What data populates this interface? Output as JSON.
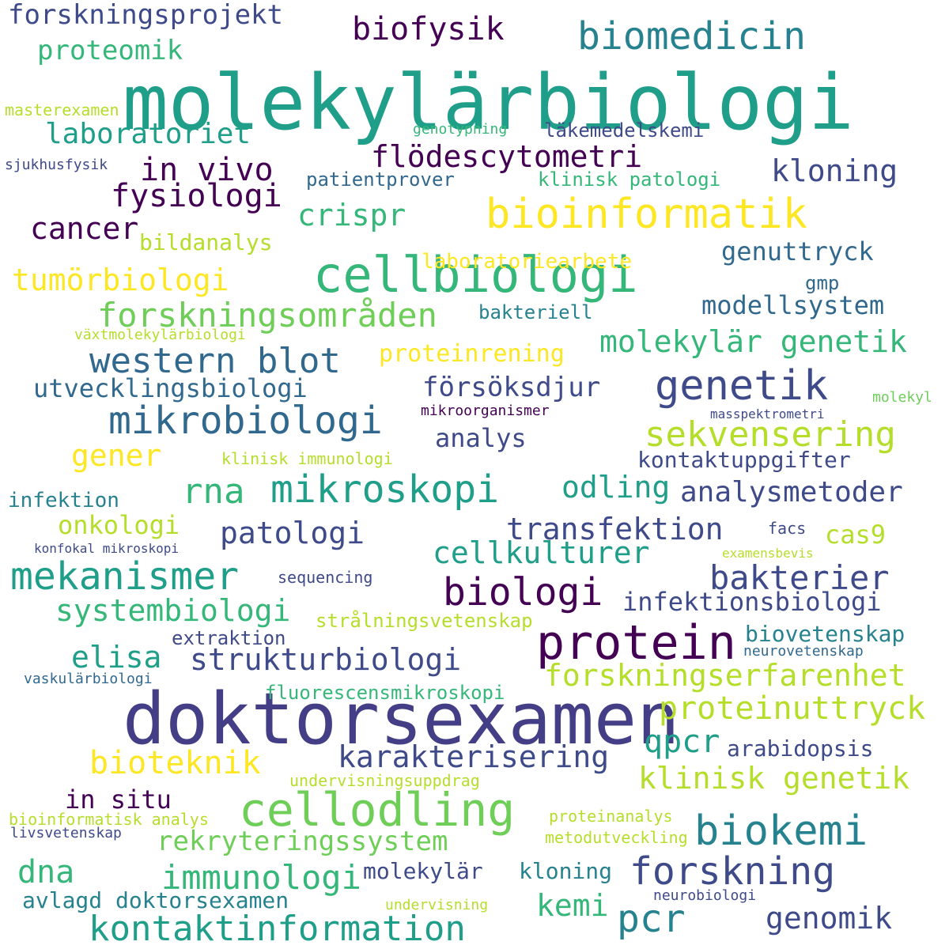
{
  "words": [
    {
      "text": "molekylärbiologi",
      "color": "#1f9e89"
    },
    {
      "text": "doktorsexamen",
      "color": "#433e85"
    },
    {
      "text": "cellbiologi",
      "color": "#35b779"
    },
    {
      "text": "protein",
      "color": "#440154"
    },
    {
      "text": "cellodling",
      "color": "#6ece58"
    },
    {
      "text": "biokemi",
      "color": "#26828e"
    },
    {
      "text": "bioinformatik",
      "color": "#fde725"
    },
    {
      "text": "genetik",
      "color": "#3e4a89"
    },
    {
      "text": "mikrobiologi",
      "color": "#31688e"
    },
    {
      "text": "biomedicin",
      "color": "#26828e"
    },
    {
      "text": "sekvensering",
      "color": "#b5de2b"
    },
    {
      "text": "western blot",
      "color": "#31688e"
    },
    {
      "text": "mikroskopi",
      "color": "#1f9e89"
    },
    {
      "text": "kontaktinformation",
      "color": "#1f9e89"
    },
    {
      "text": "forskning",
      "color": "#3e4a89"
    },
    {
      "text": "mekanismer",
      "color": "#1f9e89"
    },
    {
      "text": "biologi",
      "color": "#440154"
    },
    {
      "text": "pcr",
      "color": "#26828e"
    },
    {
      "text": "forskningsområden",
      "color": "#6ece58"
    },
    {
      "text": "molekylär genetik",
      "color": "#35b779"
    },
    {
      "text": "forskningserfarenhet",
      "color": "#b5de2b"
    },
    {
      "text": "klinisk genetik",
      "color": "#b5de2b"
    },
    {
      "text": "proteinuttryck",
      "color": "#b5de2b"
    },
    {
      "text": "immunologi",
      "color": "#35b779"
    },
    {
      "text": "bioteknik",
      "color": "#fde725"
    },
    {
      "text": "karakterisering",
      "color": "#3e4a89"
    },
    {
      "text": "qpcr",
      "color": "#1f9e89"
    },
    {
      "text": "bakterier",
      "color": "#3e4a89"
    },
    {
      "text": "transfektion",
      "color": "#3e4a89"
    },
    {
      "text": "cellkulturer",
      "color": "#1f9e89"
    },
    {
      "text": "systembiologi",
      "color": "#35b779"
    },
    {
      "text": "strukturbiologi",
      "color": "#3e4a89"
    },
    {
      "text": "rekryteringssystem",
      "color": "#6ece58"
    },
    {
      "text": "genomik",
      "color": "#3e4a89"
    },
    {
      "text": "flödescytometri",
      "color": "#440154"
    },
    {
      "text": "in vivo",
      "color": "#440154"
    },
    {
      "text": "fysiologi",
      "color": "#440154"
    },
    {
      "text": "kloning",
      "color": "#3e4a89"
    },
    {
      "text": "crispr",
      "color": "#35b779"
    },
    {
      "text": "cancer",
      "color": "#440154"
    },
    {
      "text": "tumörbiologi",
      "color": "#fde725"
    },
    {
      "text": "utvecklingsbiologi",
      "color": "#31688e"
    },
    {
      "text": "försöksdjur",
      "color": "#3e4a89"
    },
    {
      "text": "rna",
      "color": "#35b779"
    },
    {
      "text": "odling",
      "color": "#1f9e89"
    },
    {
      "text": "analysmetoder",
      "color": "#3e4a89"
    },
    {
      "text": "patologi",
      "color": "#3e4a89"
    },
    {
      "text": "elisa",
      "color": "#1f9e89"
    },
    {
      "text": "dna",
      "color": "#35b779"
    },
    {
      "text": "kemi",
      "color": "#35b779"
    },
    {
      "text": "gener",
      "color": "#fde725"
    },
    {
      "text": "infektionsbiologi",
      "color": "#3e4a89"
    },
    {
      "text": "forskningsprojekt",
      "color": "#3e4a89"
    },
    {
      "text": "biofysik",
      "color": "#440154"
    },
    {
      "text": "proteomik",
      "color": "#35b779"
    },
    {
      "text": "laboratoriet",
      "color": "#1f9e89"
    },
    {
      "text": "genuttryck",
      "color": "#31688e"
    },
    {
      "text": "modellsystem",
      "color": "#31688e"
    },
    {
      "text": "analys",
      "color": "#3e4a89"
    },
    {
      "text": "kontaktuppgifter",
      "color": "#3e4a89"
    },
    {
      "text": "onkologi",
      "color": "#b5de2b"
    },
    {
      "text": "cas9",
      "color": "#b5de2b"
    },
    {
      "text": "in situ",
      "color": "#440154"
    },
    {
      "text": "arabidopsis",
      "color": "#3e4a89"
    },
    {
      "text": "biovetenskap",
      "color": "#26828e"
    },
    {
      "text": "avlagd doktorsexamen",
      "color": "#26828e"
    },
    {
      "text": "molekylär",
      "color": "#3e4a89"
    },
    {
      "text": "kloning",
      "color": "#26828e"
    },
    {
      "text": "proteinrening",
      "color": "#fde725"
    },
    {
      "text": "laboratoriearbete",
      "color": "#fde725"
    },
    {
      "text": "bildanalys",
      "color": "#b5de2b"
    },
    {
      "text": "patientprover",
      "color": "#31688e"
    },
    {
      "text": "klinisk patologi",
      "color": "#35b779"
    },
    {
      "text": "läkemedelskemi",
      "color": "#3e4a89"
    },
    {
      "text": "fluorescensmikroskopi",
      "color": "#35b779"
    },
    {
      "text": "infektion",
      "color": "#26828e"
    },
    {
      "text": "extraktion",
      "color": "#3e4a89"
    },
    {
      "text": "strålningsvetenskap",
      "color": "#b5de2b"
    },
    {
      "text": "klinisk immunologi",
      "color": "#b5de2b"
    },
    {
      "text": "bakteriell",
      "color": "#26828e"
    },
    {
      "text": "undervisningsuppdrag",
      "color": "#b5de2b"
    },
    {
      "text": "proteinanalys",
      "color": "#b5de2b"
    },
    {
      "text": "metodutveckling",
      "color": "#b5de2b"
    },
    {
      "text": "bioinformatisk analys",
      "color": "#b5de2b"
    },
    {
      "text": "masterexamen",
      "color": "#b5de2b"
    },
    {
      "text": "sjukhusfysik",
      "color": "#3e4a89"
    },
    {
      "text": "genotypning",
      "color": "#35b779"
    },
    {
      "text": "gmp",
      "color": "#31688e"
    },
    {
      "text": "växtmolekylärbiologi",
      "color": "#b5de2b"
    },
    {
      "text": "molekyl",
      "color": "#6ece58"
    },
    {
      "text": "masspektrometri",
      "color": "#3e4a89"
    },
    {
      "text": "mikroorganismer",
      "color": "#440154"
    },
    {
      "text": "facs",
      "color": "#3e4a89"
    },
    {
      "text": "examensbevis",
      "color": "#b5de2b"
    },
    {
      "text": "konfokal mikroskopi",
      "color": "#3e4a89"
    },
    {
      "text": "sequencing",
      "color": "#3e4a89"
    },
    {
      "text": "vaskulärbiologi",
      "color": "#31688e"
    },
    {
      "text": "neurovetenskap",
      "color": "#31688e"
    },
    {
      "text": "livsvetenskap",
      "color": "#3e4a89"
    },
    {
      "text": "undervisning",
      "color": "#b5de2b"
    },
    {
      "text": "neurobiologi",
      "color": "#3e4a89"
    }
  ]
}
